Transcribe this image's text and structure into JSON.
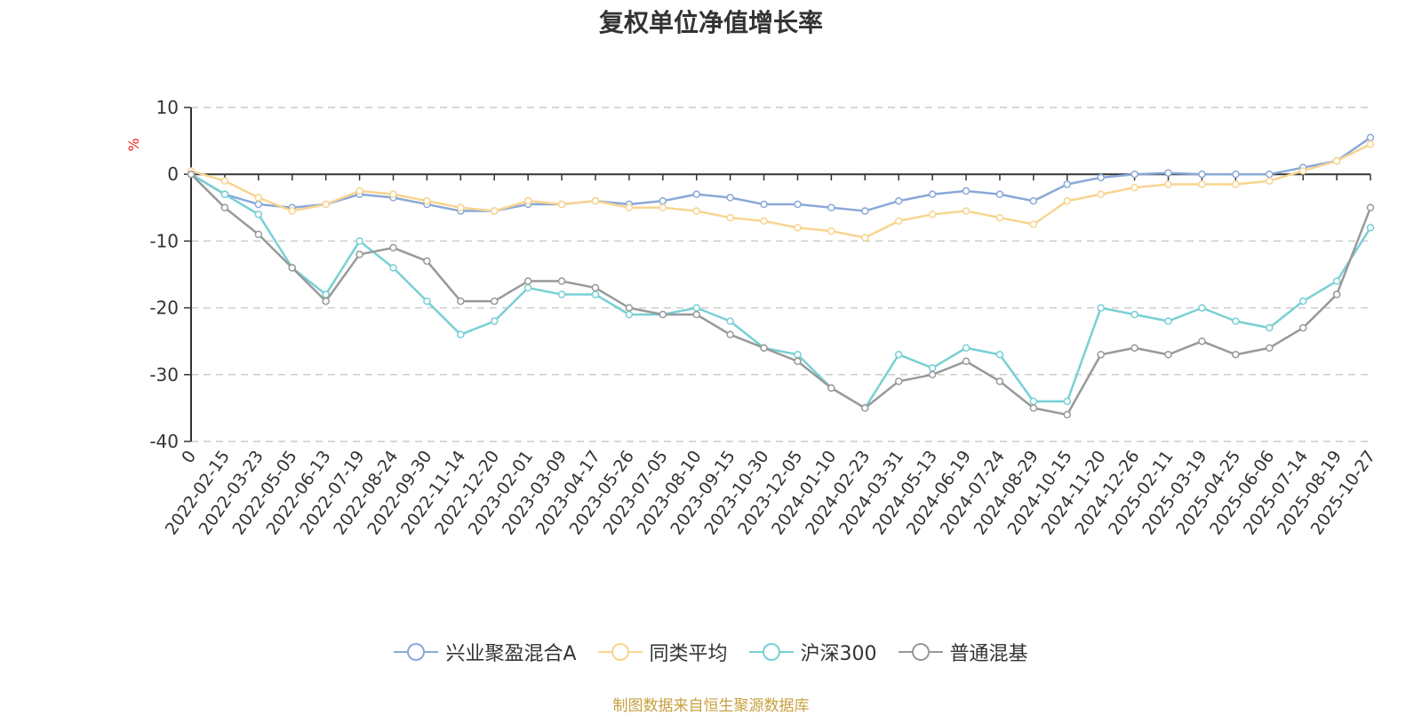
{
  "chart_data": {
    "type": "line",
    "title": "复权单位净值增长率",
    "ylabel": "%",
    "ylim": [
      -40,
      10
    ],
    "yticks": [
      "10",
      "0",
      "-10",
      "-20",
      "-30",
      "-40"
    ],
    "categories": [
      "0",
      "2022-02-15",
      "2022-03-23",
      "2022-05-05",
      "2022-06-13",
      "2022-07-19",
      "2022-08-24",
      "2022-09-30",
      "2022-11-14",
      "2022-12-20",
      "2023-02-01",
      "2023-03-09",
      "2023-04-17",
      "2023-05-26",
      "2023-07-05",
      "2023-08-10",
      "2023-09-15",
      "2023-10-30",
      "2023-12-05",
      "2024-01-10",
      "2024-02-23",
      "2024-03-31",
      "2024-05-13",
      "2024-06-19",
      "2024-07-24",
      "2024-08-29",
      "2024-10-15",
      "2024-11-20",
      "2024-12-26",
      "2025-02-11",
      "2025-03-19",
      "2025-04-25",
      "2025-06-06",
      "2025-07-14",
      "2025-08-19",
      "2025-10-27"
    ],
    "series": [
      {
        "name": "兴业聚盈混合A",
        "color": "#8aa8d8",
        "values": [
          0,
          -3,
          -4.5,
          -5,
          -4.5,
          -3,
          -3.5,
          -4.5,
          -5.5,
          -5.5,
          -4.5,
          -4.5,
          -4,
          -4.5,
          -4,
          -3,
          -3.5,
          -4.5,
          -4.5,
          -5,
          -5.5,
          -4,
          -3,
          -2.5,
          -3,
          -4,
          -1.5,
          -0.5,
          0,
          0.2,
          0,
          0,
          0,
          1,
          2,
          5.5
        ]
      },
      {
        "name": "同类平均",
        "color": "#f8d490",
        "values": [
          0.5,
          -1,
          -3.5,
          -5.5,
          -4.5,
          -2.5,
          -3,
          -4,
          -5,
          -5.5,
          -4,
          -4.5,
          -4,
          -5,
          -5,
          -5.5,
          -6.5,
          -7,
          -8,
          -8.5,
          -9.5,
          -7,
          -6,
          -5.5,
          -6.5,
          -7.5,
          -4,
          -3,
          -2,
          -1.5,
          -1.5,
          -1.5,
          -1,
          0.5,
          2,
          4.5
        ]
      },
      {
        "name": "沪深300",
        "color": "#78d0d4",
        "values": [
          0,
          -3,
          -6,
          -14,
          -18,
          -10,
          -14,
          -19,
          -24,
          -22,
          -17,
          -18,
          -18,
          -21,
          -21,
          -20,
          -22,
          -26,
          -27,
          -32,
          -35,
          -27,
          -29,
          -26,
          -27,
          -34,
          -34,
          -20,
          -21,
          -22,
          -20,
          -22,
          -23,
          -19,
          -16,
          -8
        ]
      },
      {
        "name": "普通混基",
        "color": "#999999",
        "values": [
          0,
          -5,
          -9,
          -14,
          -19,
          -12,
          -11,
          -13,
          -19,
          -19,
          -16,
          -16,
          -17,
          -20,
          -21,
          -21,
          -24,
          -26,
          -28,
          -32,
          -35,
          -31,
          -30,
          -28,
          -31,
          -35,
          -36,
          -27,
          -26,
          -27,
          -25,
          -27,
          -26,
          -23,
          -18,
          -5
        ]
      }
    ]
  },
  "legend_items": [
    "兴业聚盈混合A",
    "同类平均",
    "沪深300",
    "普通混基"
  ],
  "source_note": "制图数据来自恒生聚源数据库"
}
